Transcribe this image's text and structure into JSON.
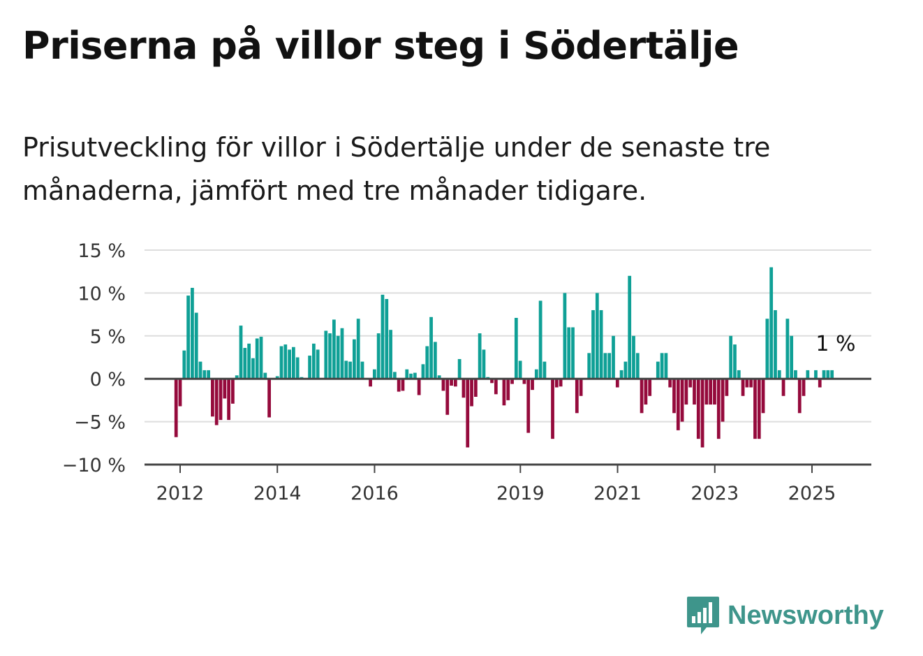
{
  "title": "Priserna på villor steg i Södertälje",
  "subtitle": "Prisutveckling för villor i Södertälje under de senaste tre månaderna, jämfört med tre månader tidigare.",
  "brand": {
    "name": "Newsworthy",
    "icon": "bar-chart-speech-bubble-icon",
    "color": "#3e958b"
  },
  "chart_data": {
    "type": "bar",
    "ylim": [
      -10,
      15
    ],
    "yticks": [
      15,
      10,
      5,
      0,
      -5,
      -10
    ],
    "ytick_labels": [
      "15 %",
      "10 %",
      "5 %",
      "0 %",
      "−5 %",
      "−10 %"
    ],
    "xticks": [
      {
        "label": "2012",
        "x": 2012.0
      },
      {
        "label": "2014",
        "x": 2014.0
      },
      {
        "label": "2016",
        "x": 2016.0
      },
      {
        "label": "2019",
        "x": 2019.0
      },
      {
        "label": "2021",
        "x": 2021.0
      },
      {
        "label": "2023",
        "x": 2023.0
      },
      {
        "label": "2025",
        "x": 2025.0
      }
    ],
    "x_start": 2011.917,
    "x_step": 0.0833,
    "positive_color": "#0fa096",
    "negative_color": "#950a3c",
    "grid": true,
    "annotation": {
      "text": "1 %",
      "value": 1
    },
    "values": [
      -6.8,
      -3.2,
      3.3,
      9.7,
      10.6,
      7.7,
      2.0,
      1.0,
      1.0,
      -4.4,
      -5.4,
      -4.8,
      -2.3,
      -4.8,
      -2.9,
      0.4,
      6.2,
      3.6,
      4.1,
      2.4,
      4.7,
      4.9,
      0.7,
      -4.5,
      0.0,
      0.3,
      3.8,
      4.0,
      3.4,
      3.7,
      2.5,
      0.2,
      0.0,
      2.7,
      4.1,
      3.4,
      0.1,
      5.6,
      5.3,
      6.9,
      5.0,
      5.9,
      2.1,
      2.0,
      4.6,
      7.0,
      2.0,
      0.0,
      -0.9,
      1.1,
      5.3,
      9.8,
      9.3,
      5.7,
      0.8,
      -1.5,
      -1.4,
      1.1,
      0.6,
      0.7,
      -1.9,
      1.7,
      3.8,
      7.2,
      4.3,
      0.4,
      -1.4,
      -4.2,
      -0.8,
      -0.9,
      2.3,
      -2.2,
      -8.0,
      -3.2,
      -2.1,
      5.3,
      3.4,
      0.2,
      -0.5,
      -1.8,
      0.0,
      -3.1,
      -2.5,
      -0.6,
      7.1,
      2.1,
      -0.6,
      -6.3,
      -1.3,
      1.1,
      9.1,
      2.0,
      0.0,
      -7.0,
      -1.0,
      -0.9,
      10.0,
      6.0,
      6.0,
      -4.0,
      -2.0,
      0.0,
      3.0,
      8.0,
      10.0,
      8.0,
      3.0,
      3.0,
      5.0,
      -1.0,
      1.0,
      2.0,
      12.0,
      5.0,
      3.0,
      -4.0,
      -3.0,
      -2.0,
      0.0,
      2.0,
      3.0,
      3.0,
      -1.0,
      -4.0,
      -6.0,
      -5.0,
      -3.0,
      -1.0,
      -3.0,
      -7.0,
      -8.0,
      -3.0,
      -3.0,
      -3.0,
      -7.0,
      -5.0,
      -2.0,
      5.0,
      4.0,
      1.0,
      -2.0,
      -1.0,
      -1.0,
      -7.0,
      -7.0,
      -4.0,
      7.0,
      13.0,
      8.0,
      1.0,
      -2.0,
      7.0,
      5.0,
      1.0,
      -4.0,
      -2.0,
      1.0,
      0.0,
      1.0,
      -1.0,
      1.0,
      1.0,
      1.0
    ]
  }
}
